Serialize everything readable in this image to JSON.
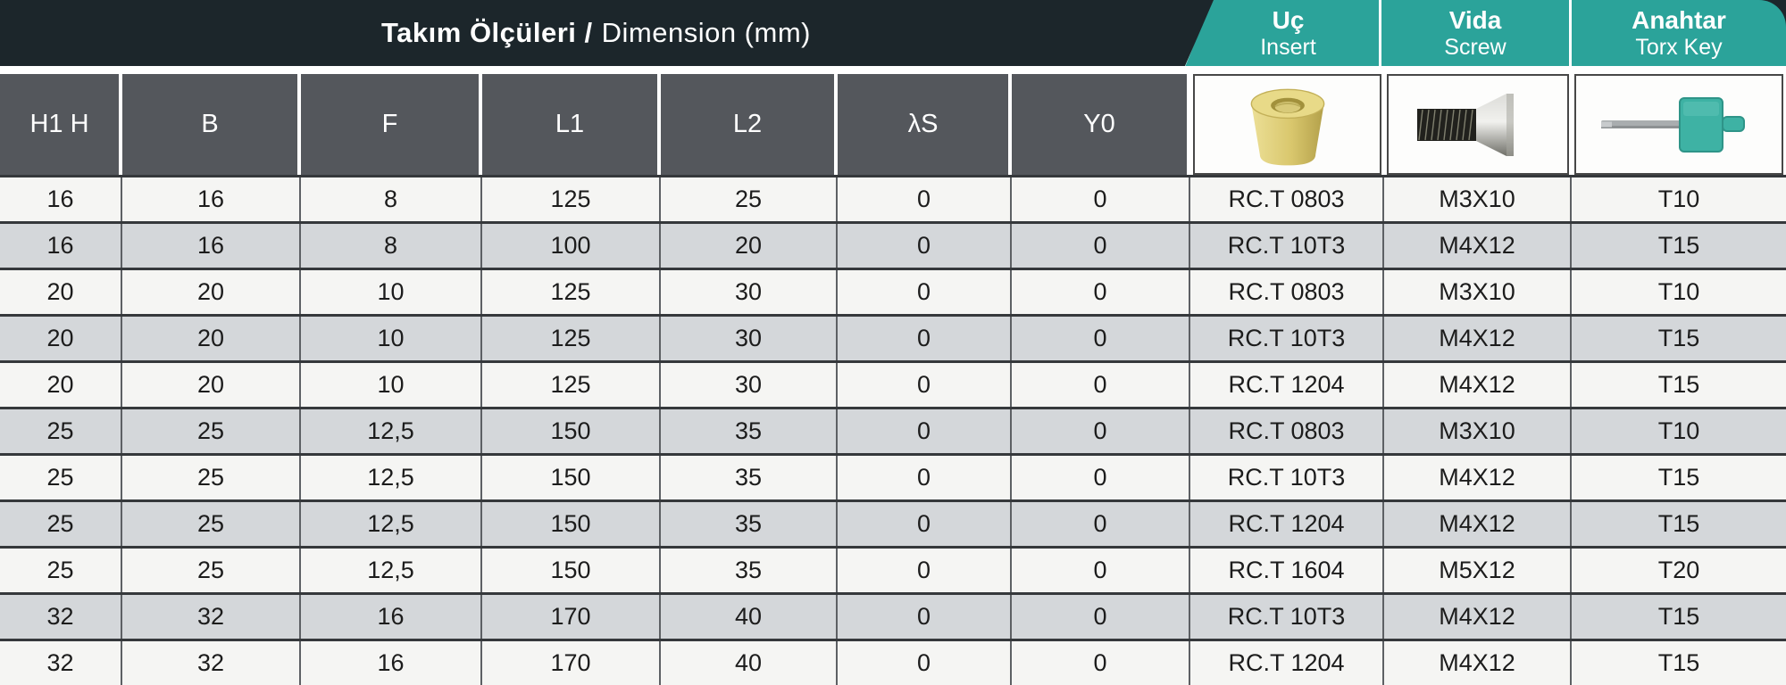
{
  "header": {
    "title_tr": "Takım Ölçüleri /",
    "title_en": "Dimension (mm)",
    "tabs": [
      {
        "tr": "Uç",
        "en": "Insert"
      },
      {
        "tr": "Vida",
        "en": "Screw"
      },
      {
        "tr": "Anahtar",
        "en": "Torx Key"
      }
    ]
  },
  "columns": [
    "H1 H",
    "B",
    "F",
    "L1",
    "L2",
    "λS",
    "Y0"
  ],
  "product_icons": [
    "round-insert-photo",
    "countersunk-screw-photo",
    "torx-key-photo"
  ],
  "rows": [
    [
      "16",
      "16",
      "8",
      "125",
      "25",
      "0",
      "0",
      "RC.T 0803",
      "M3X10",
      "T10"
    ],
    [
      "16",
      "16",
      "8",
      "100",
      "20",
      "0",
      "0",
      "RC.T 10T3",
      "M4X12",
      "T15"
    ],
    [
      "20",
      "20",
      "10",
      "125",
      "30",
      "0",
      "0",
      "RC.T 0803",
      "M3X10",
      "T10"
    ],
    [
      "20",
      "20",
      "10",
      "125",
      "30",
      "0",
      "0",
      "RC.T 10T3",
      "M4X12",
      "T15"
    ],
    [
      "20",
      "20",
      "10",
      "125",
      "30",
      "0",
      "0",
      "RC.T 1204",
      "M4X12",
      "T15"
    ],
    [
      "25",
      "25",
      "12,5",
      "150",
      "35",
      "0",
      "0",
      "RC.T 0803",
      "M3X10",
      "T10"
    ],
    [
      "25",
      "25",
      "12,5",
      "150",
      "35",
      "0",
      "0",
      "RC.T 10T3",
      "M4X12",
      "T15"
    ],
    [
      "25",
      "25",
      "12,5",
      "150",
      "35",
      "0",
      "0",
      "RC.T 1204",
      "M4X12",
      "T15"
    ],
    [
      "25",
      "25",
      "12,5",
      "150",
      "35",
      "0",
      "0",
      "RC.T 1604",
      "M5X12",
      "T20"
    ],
    [
      "32",
      "32",
      "16",
      "170",
      "40",
      "0",
      "0",
      "RC.T 10T3",
      "M4X12",
      "T15"
    ],
    [
      "32",
      "32",
      "16",
      "170",
      "40",
      "0",
      "0",
      "RC.T 1204",
      "M4X12",
      "T15"
    ]
  ],
  "colors": {
    "band_dark": "#1c262b",
    "teal": "#2ba39a",
    "header_gray": "#54575c",
    "row_light": "#f5f5f3",
    "row_alt": "#d4d7da",
    "line_dark": "#35383b",
    "line_mid": "#5d6064",
    "text_dark": "#1c1c1c",
    "insert_gold": "#d9c76d",
    "torx_teal": "#3eb2a4"
  }
}
